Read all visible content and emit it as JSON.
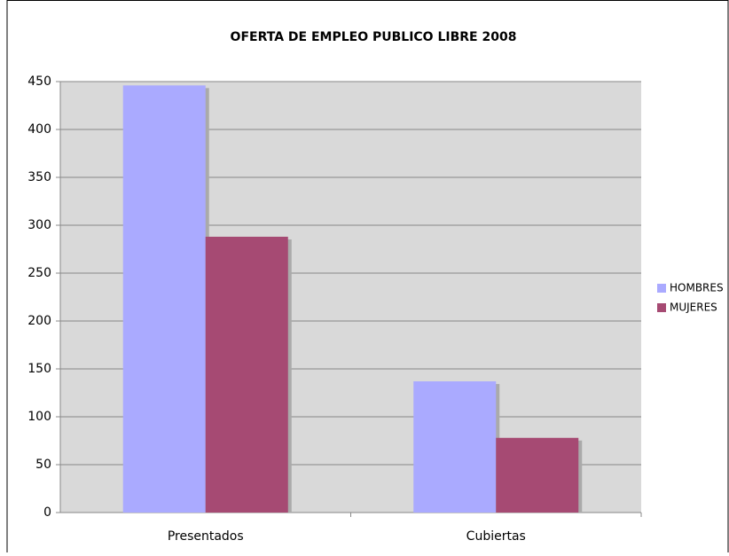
{
  "chart_data": {
    "type": "bar",
    "title": "OFERTA DE EMPLEO PUBLICO LIBRE 2008",
    "categories": [
      "Presentados",
      "Cubiertas"
    ],
    "series": [
      {
        "name": "HOMBRES",
        "color": "#aaaaff",
        "values": [
          446,
          137
        ]
      },
      {
        "name": "MUJERES",
        "color": "#a64a73",
        "values": [
          288,
          78
        ]
      }
    ],
    "ylim": [
      0,
      450
    ],
    "yticks": [
      0,
      50,
      100,
      150,
      200,
      250,
      300,
      350,
      400,
      450
    ],
    "grid": true,
    "legend": "right"
  }
}
